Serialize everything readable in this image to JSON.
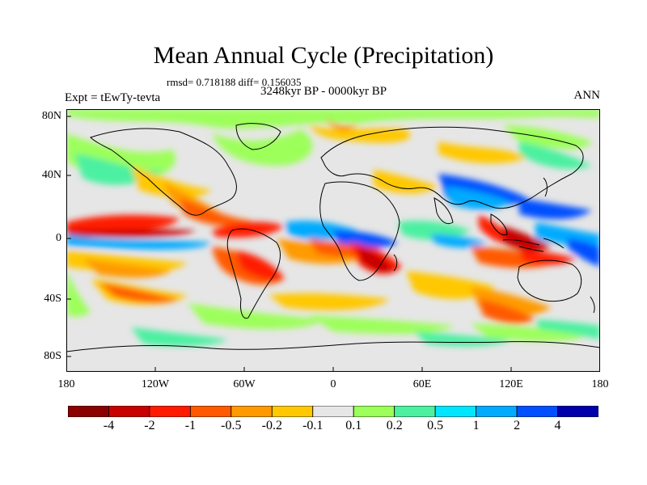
{
  "title": "Mean Annual Cycle (Precipitation)",
  "stats": "rmsd= 0.718188 diff= 0.156035",
  "period": "3248kyr BP - 0000kyr BP",
  "experiment": "Expt = tEwTy-tevta",
  "season": "ANN",
  "axes": {
    "lat_ticks": [
      "80N",
      "40N",
      "0",
      "40S",
      "80S"
    ],
    "lon_ticks": [
      "180",
      "120W",
      "60W",
      "0",
      "60E",
      "120E",
      "180"
    ]
  },
  "colorbar": {
    "labels": [
      "-4",
      "-2",
      "-1",
      "-0.5",
      "-0.2",
      "-0.1",
      "0.1",
      "0.2",
      "0.5",
      "1",
      "2",
      "4"
    ],
    "colors": [
      "#8b0000",
      "#c80000",
      "#ff1a00",
      "#ff5a00",
      "#ff9a00",
      "#ffc800",
      "#e6e6e6",
      "#9cff5a",
      "#4cf0a0",
      "#00e6ff",
      "#00aaff",
      "#0050ff",
      "#0000aa"
    ]
  },
  "colors": {
    "ocean_neutral": "#e6e6e6",
    "coast": "#000000"
  }
}
